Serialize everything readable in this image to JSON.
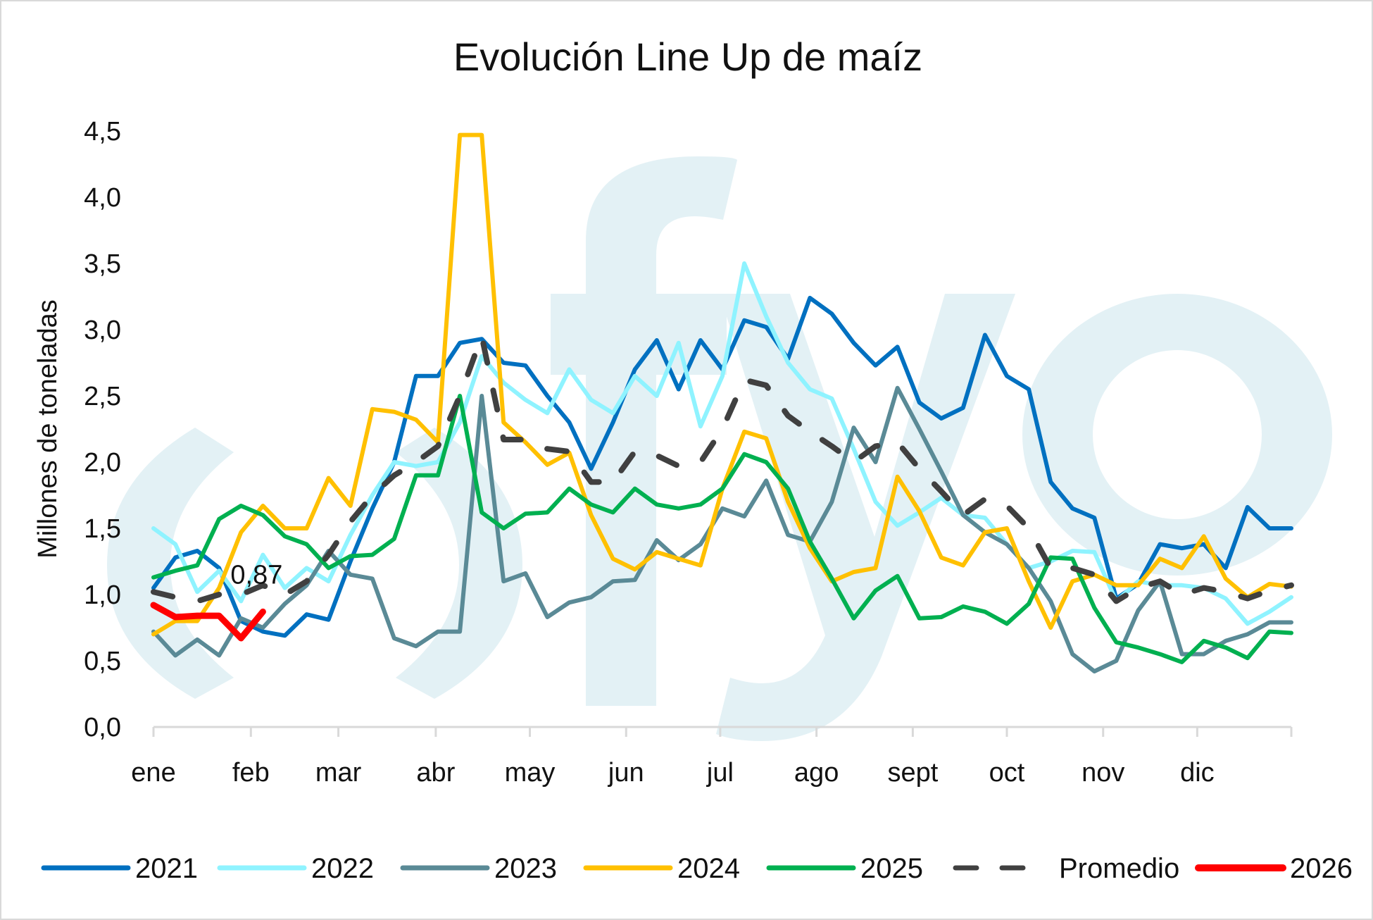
{
  "chart_data": {
    "type": "line",
    "title": "Evolución Line Up de maíz",
    "xlabel": "",
    "ylabel": "Millones de toneladas",
    "ylim": [
      0,
      4.5
    ],
    "yticks": [
      "0,0",
      "0,5",
      "1,0",
      "1,5",
      "2,0",
      "2,5",
      "3,0",
      "3,5",
      "4,0",
      "4,5"
    ],
    "months": [
      {
        "label": "ene",
        "week": 0
      },
      {
        "label": "feb",
        "week": 4.45
      },
      {
        "label": "mar",
        "week": 8.45
      },
      {
        "label": "abr",
        "week": 12.9
      },
      {
        "label": "may",
        "week": 17.2
      },
      {
        "label": "jun",
        "week": 21.6
      },
      {
        "label": "jul",
        "week": 25.9
      },
      {
        "label": "ago",
        "week": 30.3
      },
      {
        "label": "sept",
        "week": 34.7
      },
      {
        "label": "oct",
        "week": 39.0
      },
      {
        "label": "nov",
        "week": 43.4
      },
      {
        "label": "dic",
        "week": 47.7
      }
    ],
    "weeks": 53,
    "grid": false,
    "legend_position": "bottom",
    "series": [
      {
        "name": "2021",
        "color": "#0070C0",
        "dashed": false,
        "values": [
          1.05,
          1.28,
          1.33,
          1.2,
          0.8,
          0.72,
          0.69,
          0.85,
          0.81,
          1.25,
          1.65,
          2.0,
          2.65,
          2.65,
          2.9,
          2.93,
          2.75,
          2.73,
          2.5,
          2.3,
          1.95,
          2.3,
          2.7,
          2.92,
          2.55,
          2.92,
          2.7,
          3.07,
          3.02,
          2.78,
          3.24,
          3.12,
          2.9,
          2.73,
          2.87,
          2.45,
          2.33,
          2.41,
          2.96,
          2.65,
          2.55,
          1.85,
          1.65,
          1.58,
          0.97,
          1.08,
          1.38,
          1.35,
          1.38,
          1.2,
          1.66,
          1.5,
          1.5
        ]
      },
      {
        "name": "2022",
        "color": "#8FF3FF",
        "dashed": false,
        "values": [
          1.5,
          1.38,
          1.02,
          1.18,
          0.95,
          1.3,
          1.05,
          1.2,
          1.1,
          1.45,
          1.75,
          2.0,
          1.97,
          2.0,
          2.3,
          2.8,
          2.6,
          2.47,
          2.37,
          2.7,
          2.47,
          2.37,
          2.65,
          2.5,
          2.9,
          2.27,
          2.65,
          3.5,
          3.1,
          2.75,
          2.55,
          2.48,
          2.1,
          1.7,
          1.52,
          1.62,
          1.73,
          1.6,
          1.58,
          1.38,
          1.2,
          1.25,
          1.33,
          1.32,
          0.95,
          1.1,
          1.07,
          1.07,
          1.05,
          0.97,
          0.78,
          0.87,
          0.98
        ]
      },
      {
        "name": "2023",
        "color": "#5A8A96",
        "dashed": false,
        "values": [
          0.72,
          0.54,
          0.66,
          0.54,
          0.82,
          0.75,
          0.93,
          1.07,
          1.33,
          1.15,
          1.12,
          0.67,
          0.61,
          0.72,
          0.72,
          2.5,
          1.1,
          1.16,
          0.83,
          0.94,
          0.98,
          1.1,
          1.11,
          1.41,
          1.26,
          1.38,
          1.65,
          1.59,
          1.86,
          1.45,
          1.4,
          1.7,
          2.26,
          2.0,
          2.56,
          2.25,
          1.93,
          1.6,
          1.47,
          1.38,
          1.2,
          0.95,
          0.55,
          0.42,
          0.5,
          0.88,
          1.1,
          0.55,
          0.55,
          0.65,
          0.7,
          0.79,
          0.79
        ]
      },
      {
        "name": "2024",
        "color": "#FFC000",
        "dashed": false,
        "values": [
          0.7,
          0.8,
          0.8,
          1.05,
          1.47,
          1.67,
          1.5,
          1.5,
          1.88,
          1.67,
          2.4,
          2.38,
          2.32,
          2.15,
          4.47,
          4.47,
          2.3,
          2.15,
          1.98,
          2.07,
          1.6,
          1.27,
          1.19,
          1.32,
          1.27,
          1.22,
          1.8,
          2.23,
          2.18,
          1.7,
          1.35,
          1.1,
          1.17,
          1.2,
          1.89,
          1.63,
          1.28,
          1.22,
          1.47,
          1.5,
          1.1,
          0.75,
          1.1,
          1.15,
          1.07,
          1.07,
          1.27,
          1.2,
          1.44,
          1.12,
          0.98,
          1.08,
          1.06
        ]
      },
      {
        "name": "2025",
        "color": "#00B050",
        "dashed": false,
        "values": [
          1.13,
          1.18,
          1.22,
          1.57,
          1.67,
          1.6,
          1.44,
          1.38,
          1.2,
          1.29,
          1.3,
          1.42,
          1.9,
          1.9,
          2.5,
          1.62,
          1.5,
          1.61,
          1.62,
          1.8,
          1.68,
          1.62,
          1.8,
          1.68,
          1.65,
          1.68,
          1.8,
          2.06,
          2.0,
          1.8,
          1.4,
          1.12,
          0.82,
          1.03,
          1.14,
          0.82,
          0.83,
          0.91,
          0.87,
          0.78,
          0.93,
          1.28,
          1.27,
          0.9,
          0.64,
          0.6,
          0.55,
          0.49,
          0.65,
          0.6,
          0.52,
          0.72,
          0.71
        ]
      },
      {
        "name": "Promedio",
        "color": "#404040",
        "dashed": true,
        "values": [
          1.02,
          0.98,
          0.95,
          1.0,
          1.0,
          1.07,
          1.0,
          1.1,
          1.3,
          1.55,
          1.75,
          1.9,
          2.0,
          2.12,
          2.5,
          2.95,
          2.17,
          2.17,
          2.1,
          2.08,
          1.85,
          1.85,
          2.08,
          2.05,
          1.97,
          2.0,
          2.25,
          2.62,
          2.58,
          2.35,
          2.23,
          2.12,
          2.0,
          2.12,
          2.15,
          1.95,
          1.78,
          1.6,
          1.72,
          1.67,
          1.5,
          1.2,
          1.2,
          1.15,
          0.95,
          1.05,
          1.1,
          1.0,
          1.05,
          1.02,
          0.97,
          1.03,
          1.07
        ]
      },
      {
        "name": "2026",
        "color": "#FF0000",
        "dashed": false,
        "values": [
          0.92,
          0.83,
          0.84,
          0.84,
          0.67,
          0.87
        ]
      }
    ],
    "annotations": [
      {
        "series": "2026",
        "text": "0,87"
      }
    ]
  },
  "watermark": "fyo"
}
